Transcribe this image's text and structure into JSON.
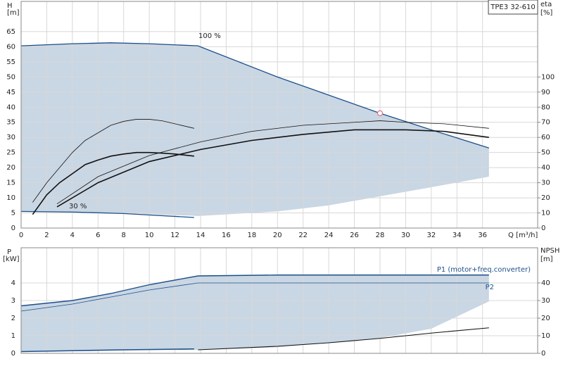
{
  "chart_data": [
    {
      "type": "line",
      "y_label": "H",
      "y_unit": "[m]",
      "y2_label": "eta",
      "y2_unit": "[%]",
      "x_label": "Q [m³/h]",
      "title": "TPE3 32-610",
      "xlim": [
        0,
        40.3
      ],
      "xticks": [
        0,
        2,
        4,
        6,
        8,
        10,
        12,
        14,
        16,
        18,
        20,
        22,
        24,
        26,
        28,
        30,
        32,
        34,
        36
      ],
      "ylim": [
        0,
        75
      ],
      "yticks": [
        0,
        5,
        10,
        15,
        20,
        25,
        30,
        35,
        40,
        45,
        50,
        55,
        60,
        65
      ],
      "y2lim": [
        0,
        150
      ],
      "y2ticks": [
        0,
        10,
        20,
        30,
        40,
        50,
        60,
        70,
        80,
        90,
        100
      ],
      "grid": true,
      "xtick_labels": true,
      "region": {
        "color": "#c9d6e4",
        "x": [
          0,
          4,
          7,
          10,
          13.8,
          20,
          24,
          28,
          32,
          36.5
        ],
        "upper": [
          60.3,
          61,
          61.3,
          61,
          60.3,
          50,
          44,
          38,
          32.5,
          26.5
        ],
        "lower": [
          5.5,
          5.3,
          5.1,
          4.6,
          4,
          5.5,
          7.5,
          10.5,
          13.5,
          17
        ]
      },
      "series": [
        {
          "name": "100 %",
          "color": "#1c4f8a",
          "width": 1.3,
          "x": [
            0,
            4,
            7,
            10,
            13.8,
            20,
            24,
            28,
            32,
            36.5
          ],
          "values": [
            60.3,
            61,
            61.3,
            61,
            60.3,
            50,
            44,
            38,
            32.5,
            26.5
          ]
        },
        {
          "name": "30 %",
          "color": "#1c4f8a",
          "width": 1.3,
          "x": [
            0,
            4,
            8,
            13.5
          ],
          "values": [
            5.5,
            5.3,
            4.8,
            3.5
          ]
        },
        {
          "color": "#111111",
          "width": 0.8,
          "x": [
            0.9,
            2,
            3,
            4,
            5,
            6,
            7,
            8,
            9,
            10,
            11,
            12,
            13.5
          ],
          "values": [
            8.5,
            15,
            20,
            25,
            29,
            31.5,
            34,
            35.3,
            36,
            36,
            35.5,
            34.5,
            33
          ]
        },
        {
          "color": "#111111",
          "width": 1.6,
          "x": [
            0.9,
            2,
            3,
            4,
            5,
            6,
            7,
            8,
            9,
            10,
            11,
            12,
            13.5
          ],
          "values": [
            4.5,
            11,
            15,
            18,
            21,
            22.5,
            23.8,
            24.5,
            25,
            25,
            24.8,
            24.5,
            23.8
          ]
        },
        {
          "color": "#111111",
          "width": 0.8,
          "axis": "y2",
          "x": [
            2.8,
            6,
            10,
            14,
            18,
            22,
            26,
            28,
            30,
            33,
            36.5
          ],
          "values": [
            16,
            34,
            48,
            57,
            64,
            68,
            70,
            71,
            70,
            69,
            66
          ]
        },
        {
          "color": "#111111",
          "width": 1.6,
          "axis": "y2",
          "x": [
            2.8,
            6,
            10,
            14,
            18,
            22,
            26,
            30,
            33,
            36.5
          ],
          "values": [
            14,
            30,
            44,
            52,
            58,
            62,
            65,
            65,
            64,
            60
          ]
        }
      ],
      "markers": [
        {
          "x": 28,
          "y": 38,
          "color": "#e07080"
        }
      ]
    },
    {
      "type": "line",
      "y_label": "P",
      "y_unit": "[kW]",
      "y2_label": "NPSH",
      "y2_unit": "[m]",
      "xlim": [
        0,
        40.3
      ],
      "xticks": [
        0,
        2,
        4,
        6,
        8,
        10,
        12,
        14,
        16,
        18,
        20,
        22,
        24,
        26,
        28,
        30,
        32,
        34,
        36
      ],
      "ylim": [
        0,
        6
      ],
      "yticks": [
        0,
        1,
        2,
        3,
        4
      ],
      "y2lim": [
        0,
        60
      ],
      "y2ticks": [
        0,
        10,
        20,
        30,
        40
      ],
      "grid": true,
      "xtick_labels": false,
      "region": {
        "color": "#c9d6e4",
        "x": [
          0,
          4,
          7,
          10,
          13.8,
          20,
          24,
          28,
          32,
          36.5
        ],
        "upper": [
          2.7,
          3,
          3.4,
          3.9,
          4.4,
          4.45,
          4.45,
          4.45,
          4.45,
          4.45
        ],
        "lower": [
          0.1,
          0.13,
          0.16,
          0.18,
          0.2,
          0.35,
          0.6,
          0.87,
          1.4,
          2.95
        ]
      },
      "series": [
        {
          "name": "P1 (motor+freq.converter)",
          "color": "#1c4f8a",
          "width": 1.4,
          "x": [
            0,
            4,
            7,
            10,
            13.8,
            20,
            28,
            36.5
          ],
          "values": [
            2.7,
            3,
            3.4,
            3.9,
            4.4,
            4.45,
            4.45,
            4.45
          ]
        },
        {
          "name": "P2",
          "color": "#1c4f8a",
          "width": 0.8,
          "x": [
            0,
            4,
            7,
            10,
            13.8,
            20,
            28,
            36.5
          ],
          "values": [
            2.4,
            2.8,
            3.2,
            3.6,
            4.0,
            4.0,
            4.0,
            4.0
          ]
        },
        {
          "color": "#1c4f8a",
          "width": 1.6,
          "x": [
            0,
            4,
            8,
            13.5
          ],
          "values": [
            0.1,
            0.15,
            0.2,
            0.25
          ]
        },
        {
          "color": "#111111",
          "width": 1.1,
          "axis": "y2",
          "x": [
            13.8,
            20,
            24,
            28,
            32,
            36.5
          ],
          "values": [
            2,
            4,
            6,
            8.5,
            11.5,
            14.5
          ]
        }
      ]
    }
  ]
}
